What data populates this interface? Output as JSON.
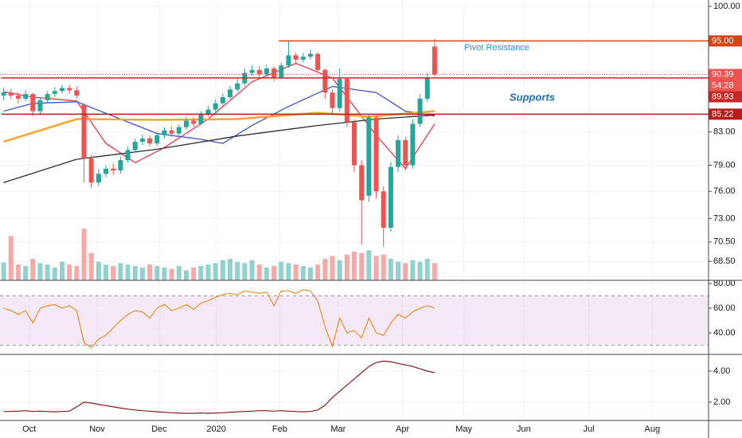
{
  "chart_data": {
    "type": "candlestick",
    "log_scale": true,
    "grid": true,
    "xlim": [
      -0.5,
      96.5
    ],
    "xticks": [
      {
        "value": 3.5,
        "label": "Oct"
      },
      {
        "value": 12.8,
        "label": "Nov"
      },
      {
        "value": 21.3,
        "label": "Dec"
      },
      {
        "value": 29.1,
        "label": "2020"
      },
      {
        "value": 37.8,
        "label": "Feb"
      },
      {
        "value": 45.8,
        "label": "Mar"
      },
      {
        "value": 54.6,
        "label": "Apr"
      },
      {
        "value": 63,
        "label": "May"
      },
      {
        "value": 71.2,
        "label": "Jun"
      },
      {
        "value": 80.1,
        "label": "Jul"
      },
      {
        "value": 88.8,
        "label": "Aug"
      }
    ],
    "ylim": [
      66.6,
      100.95
    ],
    "yticks": [
      {
        "value": 100,
        "label": "100.00"
      },
      {
        "value": 83,
        "label": "83.00"
      },
      {
        "value": 79,
        "label": "79.00"
      },
      {
        "value": 76,
        "label": "76.00"
      },
      {
        "value": 73,
        "label": "73.00"
      },
      {
        "value": 70.5,
        "label": "70.50"
      },
      {
        "value": 68.5,
        "label": "68.50"
      }
    ],
    "up_color": "#26a69a",
    "down_color": "#ef5350",
    "ohlc": [
      [
        87.6,
        88.6,
        87.0,
        88.0
      ],
      [
        88.0,
        88.5,
        87.1,
        87.6
      ],
      [
        87.6,
        88.0,
        86.6,
        87.2
      ],
      [
        87.2,
        88.3,
        86.9,
        87.8
      ],
      [
        87.8,
        88.0,
        85.0,
        85.6
      ],
      [
        85.6,
        87.4,
        85.2,
        87.0
      ],
      [
        87.0,
        88.2,
        86.6,
        87.8
      ],
      [
        87.8,
        88.7,
        87.4,
        88.2
      ],
      [
        88.2,
        89.0,
        87.9,
        88.6
      ],
      [
        88.6,
        89.0,
        87.8,
        88.3
      ],
      [
        88.3,
        88.8,
        87.2,
        87.6
      ],
      [
        86.4,
        86.6,
        77.0,
        79.8
      ],
      [
        79.8,
        80.2,
        76.4,
        77.0
      ],
      [
        77.0,
        78.6,
        76.6,
        78.0
      ],
      [
        78.0,
        79.0,
        77.6,
        78.6
      ],
      [
        78.6,
        79.2,
        77.9,
        78.4
      ],
      [
        78.4,
        80.0,
        78.0,
        79.6
      ],
      [
        79.6,
        81.2,
        79.3,
        80.8
      ],
      [
        80.8,
        82.2,
        80.5,
        81.8
      ],
      [
        81.8,
        82.7,
        81.4,
        82.2
      ],
      [
        82.2,
        82.6,
        81.2,
        81.6
      ],
      [
        81.6,
        83.0,
        81.3,
        82.6
      ],
      [
        82.6,
        83.6,
        82.2,
        83.2
      ],
      [
        83.2,
        83.7,
        82.4,
        82.8
      ],
      [
        82.8,
        84.0,
        82.5,
        83.6
      ],
      [
        83.6,
        84.9,
        83.3,
        84.4
      ],
      [
        84.4,
        84.8,
        83.6,
        84.0
      ],
      [
        84.0,
        85.6,
        83.8,
        85.2
      ],
      [
        85.2,
        86.3,
        84.9,
        85.8
      ],
      [
        85.8,
        87.1,
        85.5,
        86.6
      ],
      [
        86.6,
        87.9,
        86.3,
        87.4
      ],
      [
        87.4,
        88.9,
        87.1,
        88.4
      ],
      [
        88.4,
        89.8,
        88.1,
        89.2
      ],
      [
        89.2,
        91.2,
        88.9,
        90.6
      ],
      [
        90.6,
        91.6,
        90.2,
        91.0
      ],
      [
        91.0,
        91.5,
        90.0,
        90.4
      ],
      [
        90.4,
        91.7,
        90.0,
        91.2
      ],
      [
        91.2,
        91.5,
        89.5,
        90.0
      ],
      [
        90.0,
        92.0,
        89.8,
        91.6
      ],
      [
        91.6,
        95.0,
        91.3,
        93.0
      ],
      [
        93.0,
        93.4,
        91.9,
        92.4
      ],
      [
        92.4,
        93.3,
        92.0,
        92.8
      ],
      [
        92.8,
        93.8,
        92.4,
        93.2
      ],
      [
        93.2,
        93.4,
        90.6,
        91.0
      ],
      [
        91.0,
        91.2,
        87.2,
        88.0
      ],
      [
        88.0,
        88.4,
        85.2,
        86.0
      ],
      [
        86.0,
        91.2,
        85.6,
        89.8
      ],
      [
        89.8,
        90.0,
        83.6,
        84.2
      ],
      [
        84.2,
        84.6,
        78.2,
        79.0
      ],
      [
        79.0,
        79.6,
        70.2,
        75.0
      ],
      [
        75.5,
        85.2,
        74.8,
        84.8
      ],
      [
        84.8,
        85.0,
        75.2,
        76.0
      ],
      [
        76.0,
        76.6,
        70.0,
        72.0
      ],
      [
        72.0,
        79.4,
        71.6,
        78.8
      ],
      [
        78.8,
        82.6,
        78.2,
        82.0
      ],
      [
        82.0,
        82.4,
        78.4,
        79.0
      ],
      [
        79.0,
        84.6,
        78.6,
        84.0
      ],
      [
        84.0,
        87.8,
        83.6,
        87.2
      ],
      [
        87.2,
        90.6,
        86.8,
        90.0
      ],
      [
        94.2,
        95.3,
        90.1,
        90.4
      ]
    ],
    "volume": [
      25,
      62,
      22,
      20,
      30,
      24,
      22,
      18,
      26,
      22,
      20,
      72,
      38,
      26,
      22,
      20,
      24,
      22,
      20,
      18,
      22,
      20,
      18,
      16,
      20,
      14,
      18,
      20,
      22,
      24,
      28,
      30,
      26,
      24,
      28,
      22,
      18,
      20,
      26,
      24,
      22,
      20,
      18,
      22,
      30,
      34,
      28,
      36,
      40,
      38,
      42,
      34,
      36,
      30,
      26,
      24,
      28,
      26,
      30,
      24
    ],
    "moving_averages": [
      {
        "color": "#f23645",
        "x": [
          0,
          4,
          10,
          14,
          18,
          22,
          28,
          34,
          40,
          45,
          51,
          55,
          59
        ],
        "values": [
          88.1,
          87.4,
          86.9,
          81.6,
          79.3,
          81.1,
          84.6,
          89.4,
          91.9,
          89.9,
          82.6,
          78.6,
          84.0
        ]
      },
      {
        "color": "#3f51d6",
        "x": [
          0,
          4,
          10,
          16,
          21,
          27,
          30,
          34,
          39,
          45,
          51,
          55,
          59
        ],
        "values": [
          85.6,
          86.6,
          86.8,
          84.6,
          82.8,
          82.1,
          81.6,
          83.8,
          86.2,
          88.8,
          88.0,
          85.6,
          85.0
        ]
      },
      {
        "color": "#f7a531",
        "x": [
          0,
          10,
          21,
          32,
          43,
          50,
          59
        ],
        "values": [
          81.8,
          84.6,
          84.5,
          84.6,
          85.4,
          84.9,
          85.6
        ]
      },
      {
        "color": "#2e2e2e",
        "x": [
          0,
          10,
          21,
          32,
          43,
          51,
          59
        ],
        "values": [
          77.0,
          79.7,
          80.9,
          82.5,
          83.8,
          84.6,
          85.1
        ]
      }
    ],
    "levels": [
      {
        "value": 95,
        "label": "95.00",
        "color": "#d84315",
        "from": 38
      },
      {
        "value": 89.93,
        "label": "89.93",
        "color": "#c62828",
        "from": 0
      },
      {
        "value": 85.22,
        "label": "85.22",
        "color": "#b71c1c",
        "from": 0
      }
    ],
    "current_price": {
      "value": 90.39,
      "label": "90.39",
      "countdown": "54:28",
      "color": "#ef5350"
    },
    "annotations": [
      "Pivot Resistance",
      "Supports"
    ],
    "rsi": {
      "ylim": [
        22.6,
        82.6
      ],
      "yticks": [
        {
          "value": 80,
          "label": "80.00"
        },
        {
          "value": 60,
          "label": "60.00"
        },
        {
          "value": 40,
          "label": "40.00"
        }
      ],
      "band": [
        30,
        70
      ],
      "color": "#f57c00",
      "values": [
        60,
        58,
        55,
        58,
        48,
        60,
        62,
        63,
        60,
        62,
        58,
        32,
        28,
        35,
        38,
        44,
        50,
        55,
        58,
        57,
        52,
        60,
        63,
        58,
        60,
        63,
        59,
        64,
        66,
        69,
        71,
        72,
        71,
        74,
        73,
        72,
        73,
        62,
        74,
        74,
        72,
        75,
        74,
        66,
        45,
        29,
        52,
        40,
        42,
        36,
        52,
        40,
        38,
        48,
        55,
        52,
        57,
        60,
        62,
        60
      ]
    },
    "indicator": {
      "ylim": [
        0.82,
        5.08
      ],
      "yticks": [
        {
          "value": 4,
          "label": "4.00"
        },
        {
          "value": 2,
          "label": "2.00"
        }
      ],
      "color": "#8b1a1a",
      "values": [
        1.4,
        1.4,
        1.42,
        1.45,
        1.4,
        1.42,
        1.4,
        1.38,
        1.4,
        1.42,
        1.7,
        2.0,
        1.95,
        1.85,
        1.78,
        1.7,
        1.62,
        1.55,
        1.5,
        1.45,
        1.42,
        1.38,
        1.35,
        1.32,
        1.3,
        1.28,
        1.28,
        1.3,
        1.28,
        1.3,
        1.32,
        1.35,
        1.38,
        1.4,
        1.42,
        1.45,
        1.45,
        1.42,
        1.45,
        1.42,
        1.4,
        1.38,
        1.4,
        1.5,
        1.8,
        2.3,
        2.7,
        3.1,
        3.5,
        3.9,
        4.3,
        4.55,
        4.65,
        4.6,
        4.5,
        4.4,
        4.3,
        4.15,
        4.0,
        3.9
      ]
    }
  }
}
